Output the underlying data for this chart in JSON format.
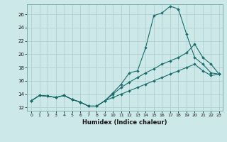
{
  "xlabel": "Humidex (Indice chaleur)",
  "bg_color": "#cde8e8",
  "line_color": "#1a6b6b",
  "grid_color": "#b0d0d0",
  "xlim_min": -0.5,
  "xlim_max": 23.4,
  "ylim_min": 11.5,
  "ylim_max": 27.5,
  "xticks": [
    0,
    1,
    2,
    3,
    4,
    5,
    6,
    7,
    8,
    9,
    10,
    11,
    12,
    13,
    14,
    15,
    16,
    17,
    18,
    19,
    20,
    21,
    22,
    23
  ],
  "yticks": [
    12,
    14,
    16,
    18,
    20,
    22,
    24,
    26
  ],
  "line1_x": [
    0,
    1,
    2,
    3,
    4,
    5,
    6,
    7,
    8,
    9,
    10,
    11,
    12,
    13,
    14,
    15,
    16,
    17,
    18,
    19,
    20,
    21,
    22,
    23
  ],
  "line1_y": [
    13.0,
    13.8,
    13.7,
    13.5,
    13.8,
    13.2,
    12.8,
    12.2,
    12.2,
    13.0,
    13.5,
    14.0,
    14.5,
    15.0,
    15.5,
    16.0,
    16.5,
    17.0,
    17.5,
    18.0,
    18.5,
    17.5,
    16.8,
    17.0
  ],
  "line2_x": [
    0,
    1,
    2,
    3,
    4,
    5,
    6,
    7,
    8,
    9,
    10,
    11,
    12,
    13,
    14,
    15,
    16,
    17,
    18,
    19,
    20,
    21,
    22,
    23
  ],
  "line2_y": [
    13.0,
    13.8,
    13.7,
    13.5,
    13.8,
    13.2,
    12.8,
    12.2,
    12.2,
    13.0,
    14.0,
    15.0,
    15.8,
    16.5,
    17.2,
    17.8,
    18.5,
    19.0,
    19.5,
    20.2,
    21.5,
    19.5,
    18.5,
    17.0
  ],
  "line3_x": [
    0,
    1,
    2,
    3,
    4,
    5,
    6,
    7,
    8,
    9,
    10,
    11,
    12,
    13,
    14,
    15,
    16,
    17,
    18,
    19,
    20,
    21,
    22,
    23
  ],
  "line3_y": [
    13.0,
    13.8,
    13.7,
    13.5,
    13.8,
    13.2,
    12.8,
    12.2,
    12.2,
    13.0,
    14.2,
    15.5,
    17.2,
    17.5,
    21.0,
    25.8,
    26.2,
    27.2,
    26.8,
    23.0,
    19.5,
    18.5,
    17.2,
    17.0
  ]
}
